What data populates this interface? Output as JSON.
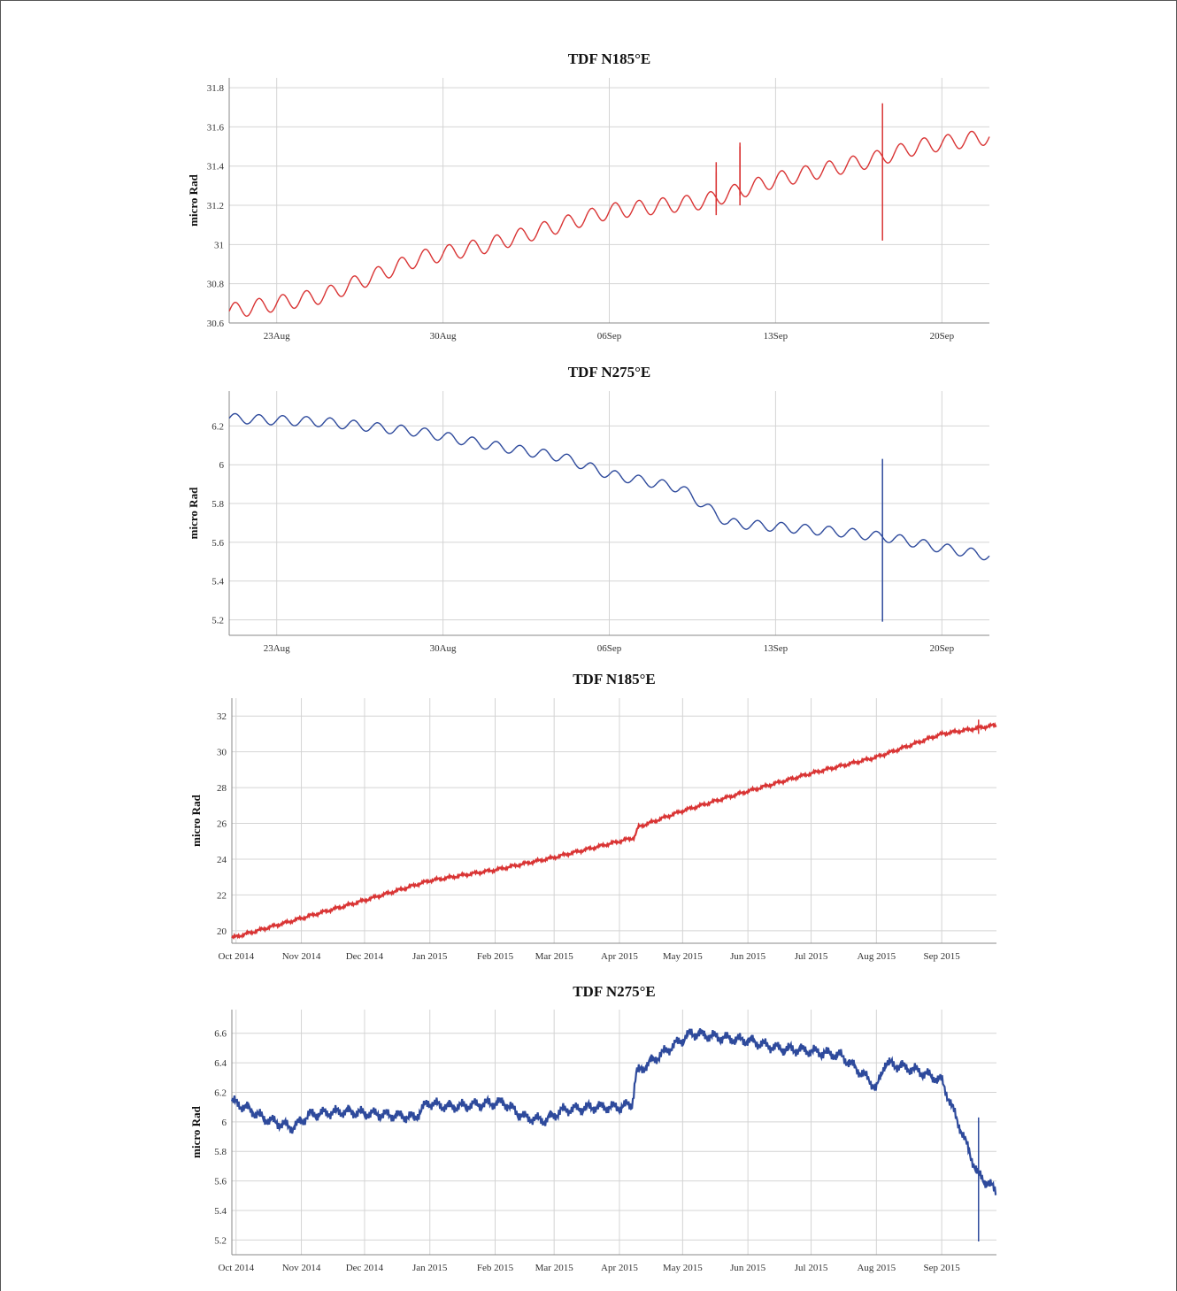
{
  "chart_data": [
    {
      "type": "line",
      "title": "TDF N185°E",
      "ylabel": "micro Rad",
      "xlabel": "",
      "grid": true,
      "color": "#d93434",
      "x_range": [
        "2015-08-21",
        "2015-09-22"
      ],
      "ylim": [
        30.6,
        31.85
      ],
      "x_tick_labels": [
        "23Aug",
        "30Aug",
        "06Sep",
        "13Sep",
        "20Sep"
      ],
      "x_tick_dates": [
        "2015-08-23",
        "2015-08-30",
        "2015-09-06",
        "2015-09-13",
        "2015-09-20"
      ],
      "y_tick_labels": [
        "30.6",
        "30.8",
        "31",
        "31.2",
        "31.4",
        "31.6",
        "31.8"
      ],
      "series": [
        {
          "x": [
            "2015-08-21",
            "2015-08-25",
            "2015-08-29",
            "2015-09-01",
            "2015-09-06",
            "2015-09-10",
            "2015-09-13",
            "2015-09-17",
            "2015-09-19",
            "2015-09-22"
          ],
          "y": [
            30.66,
            30.74,
            30.93,
            31.0,
            31.17,
            31.22,
            31.33,
            31.43,
            31.5,
            31.55
          ],
          "daily_amplitude": 0.04,
          "spikes": [
            {
              "x": "2015-09-10",
              "min": 31.17,
              "max": 31.37
            },
            {
              "x": "2015-09-10",
              "min": 31.15,
              "max": 31.42
            },
            {
              "x": "2015-09-11",
              "min": 31.2,
              "max": 31.52
            },
            {
              "x": "2015-09-11",
              "min": 31.25,
              "max": 31.5
            },
            {
              "x": "2015-09-17",
              "min": 31.02,
              "max": 31.72
            }
          ]
        }
      ]
    },
    {
      "type": "line",
      "title": "TDF N275°E",
      "ylabel": "micro Rad",
      "xlabel": "",
      "grid": true,
      "color": "#2e4a9c",
      "x_range": [
        "2015-08-21",
        "2015-09-22"
      ],
      "ylim": [
        5.12,
        6.38
      ],
      "x_tick_labels": [
        "23Aug",
        "30Aug",
        "06Sep",
        "13Sep",
        "20Sep"
      ],
      "x_tick_dates": [
        "2015-08-23",
        "2015-08-30",
        "2015-09-06",
        "2015-09-13",
        "2015-09-20"
      ],
      "y_tick_labels": [
        "5.2",
        "5.4",
        "5.6",
        "5.8",
        "6",
        "6.2"
      ],
      "series": [
        {
          "x": [
            "2015-08-21",
            "2015-08-25",
            "2015-08-29",
            "2015-09-01",
            "2015-09-04",
            "2015-09-06",
            "2015-09-09",
            "2015-09-11",
            "2015-09-13",
            "2015-09-16",
            "2015-09-18",
            "2015-09-20",
            "2015-09-22"
          ],
          "y": [
            6.24,
            6.22,
            6.17,
            6.1,
            6.04,
            5.95,
            5.88,
            5.7,
            5.68,
            5.65,
            5.62,
            5.57,
            5.53
          ],
          "daily_amplitude": 0.025,
          "spikes": [
            {
              "x": "2015-09-17",
              "min": 5.19,
              "max": 6.03
            }
          ]
        }
      ]
    },
    {
      "type": "line",
      "title": "TDF N185°E",
      "ylabel": "micro Rad",
      "xlabel": "",
      "grid": true,
      "color": "#d93434",
      "x_range": [
        "2014-09-29",
        "2015-09-27"
      ],
      "ylim": [
        19.3,
        33.0
      ],
      "x_tick_labels": [
        "Oct 2014",
        "Nov 2014",
        "Dec 2014",
        "Jan 2015",
        "Feb 2015",
        "Mar 2015",
        "Apr 2015",
        "May 2015",
        "Jun 2015",
        "Jul 2015",
        "Aug 2015",
        "Sep 2015"
      ],
      "x_tick_dates": [
        "2014-10-01",
        "2014-11-01",
        "2014-12-01",
        "2015-01-01",
        "2015-02-01",
        "2015-03-01",
        "2015-04-01",
        "2015-05-01",
        "2015-06-01",
        "2015-07-01",
        "2015-08-01",
        "2015-09-01"
      ],
      "y_tick_labels": [
        "20",
        "22",
        "24",
        "26",
        "28",
        "30",
        "32"
      ],
      "series": [
        {
          "x": [
            "2014-09-29",
            "2014-11-01",
            "2014-12-01",
            "2015-01-01",
            "2015-02-01",
            "2015-03-01",
            "2015-04-08",
            "2015-04-10",
            "2015-05-01",
            "2015-06-01",
            "2015-07-01",
            "2015-08-01",
            "2015-09-01",
            "2015-09-27"
          ],
          "y": [
            19.6,
            20.7,
            21.7,
            22.8,
            23.4,
            24.1,
            25.2,
            25.8,
            26.7,
            27.8,
            28.8,
            29.7,
            31.0,
            31.5
          ],
          "daily_amplitude": 0.06,
          "spikes": [
            {
              "x": "2015-09-18",
              "min": 31.0,
              "max": 31.8
            }
          ]
        }
      ]
    },
    {
      "type": "line",
      "title": "TDF N275°E",
      "ylabel": "micro Rad",
      "xlabel": "",
      "grid": true,
      "color": "#2e4a9c",
      "x_range": [
        "2014-09-29",
        "2015-09-27"
      ],
      "ylim": [
        5.1,
        6.76
      ],
      "x_tick_labels": [
        "Oct 2014",
        "Nov 2014",
        "Dec 2014",
        "Jan 2015",
        "Feb 2015",
        "Mar 2015",
        "Apr 2015",
        "May 2015",
        "Jun 2015",
        "Jul 2015",
        "Aug 2015",
        "Sep 2015"
      ],
      "x_tick_dates": [
        "2014-10-01",
        "2014-11-01",
        "2014-12-01",
        "2015-01-01",
        "2015-02-01",
        "2015-03-01",
        "2015-04-01",
        "2015-05-01",
        "2015-06-01",
        "2015-07-01",
        "2015-08-01",
        "2015-09-01"
      ],
      "y_tick_labels": [
        "5.2",
        "5.4",
        "5.6",
        "5.8",
        "6",
        "6.2",
        "6.4",
        "6.6"
      ],
      "series": [
        {
          "x": [
            "2014-09-29",
            "2014-10-05",
            "2014-10-15",
            "2014-10-28",
            "2014-11-05",
            "2014-11-20",
            "2014-12-10",
            "2014-12-25",
            "2014-12-31",
            "2015-01-10",
            "2015-01-25",
            "2015-02-05",
            "2015-02-15",
            "2015-02-25",
            "2015-03-05",
            "2015-03-20",
            "2015-04-01",
            "2015-04-07",
            "2015-04-09",
            "2015-04-20",
            "2015-05-05",
            "2015-05-20",
            "2015-06-01",
            "2015-06-15",
            "2015-07-01",
            "2015-07-15",
            "2015-07-29",
            "2015-08-01",
            "2015-08-05",
            "2015-08-20",
            "2015-09-01",
            "2015-09-10",
            "2015-09-18",
            "2015-09-27"
          ],
          "y": [
            6.14,
            6.1,
            6.02,
            5.96,
            6.05,
            6.07,
            6.05,
            6.03,
            6.13,
            6.1,
            6.12,
            6.13,
            6.03,
            6.01,
            6.08,
            6.1,
            6.1,
            6.12,
            6.33,
            6.45,
            6.6,
            6.57,
            6.55,
            6.5,
            6.48,
            6.45,
            6.28,
            6.22,
            6.4,
            6.35,
            6.28,
            5.95,
            5.65,
            5.53
          ],
          "daily_amplitude": 0.025,
          "spikes": [
            {
              "x": "2015-09-18",
              "min": 5.19,
              "max": 6.03
            }
          ]
        }
      ]
    }
  ]
}
